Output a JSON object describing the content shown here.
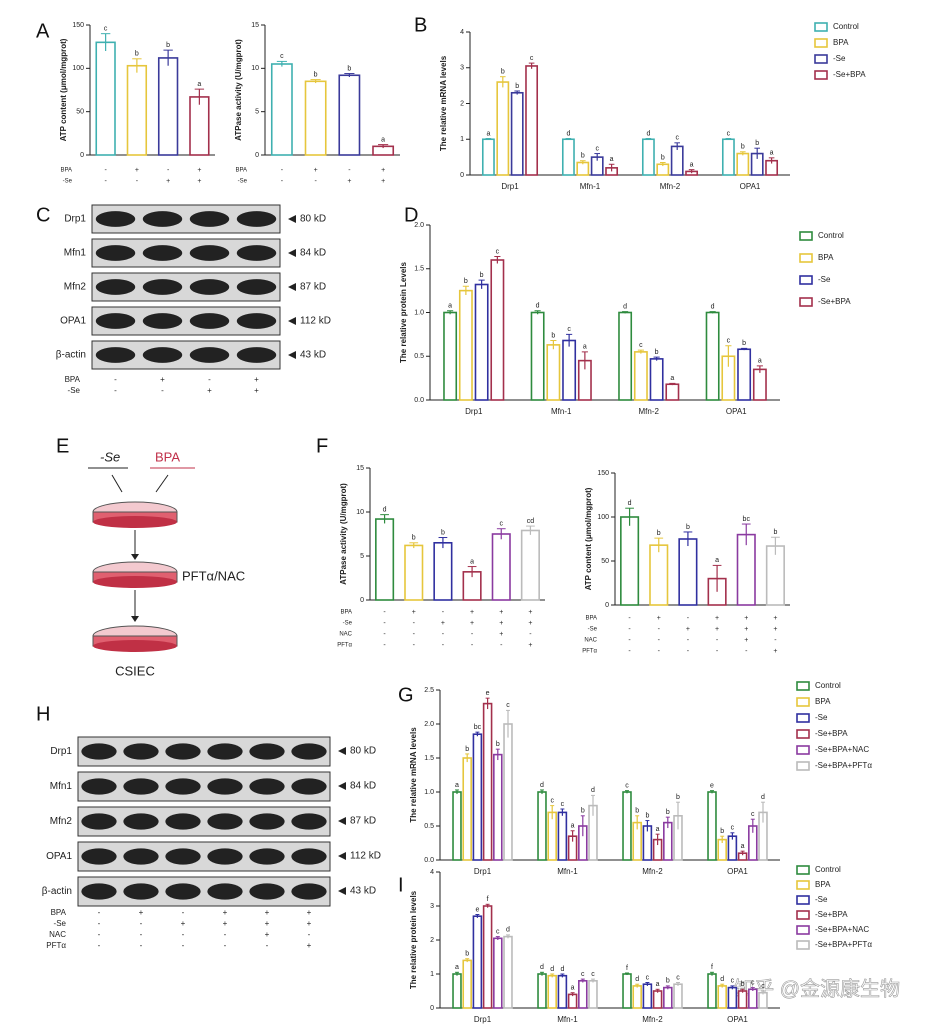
{
  "panel_labels": [
    "A",
    "B",
    "C",
    "D",
    "E",
    "F",
    "H",
    "G",
    "I"
  ],
  "watermark": "知乎 @金源康生物",
  "scheme": {
    "treatments": [
      "-Se",
      "BPA"
    ],
    "step": "PFTα/NAC",
    "cell": "CSIEC"
  },
  "blots": [
    {
      "proteins": [
        "Drp1",
        "Mfn1",
        "Mfn2",
        "OPA1",
        "β-actin"
      ],
      "sizes": [
        "80 kD",
        "84 kD",
        "87 kD",
        "112 kD",
        "43 kD"
      ],
      "conditions": [
        {
          "label": "BPA",
          "signs": [
            "-",
            "+",
            "-",
            "+"
          ]
        },
        {
          "label": "-Se",
          "signs": [
            "-",
            "-",
            "+",
            "+"
          ]
        }
      ]
    },
    {
      "proteins": [
        "Drp1",
        "Mfn1",
        "Mfn2",
        "OPA1",
        "β-actin"
      ],
      "sizes": [
        "80 kD",
        "84 kD",
        "87 kD",
        "112 kD",
        "43 kD"
      ],
      "conditions": [
        {
          "label": "BPA",
          "signs": [
            "-",
            "+",
            "-",
            "+",
            "+",
            "+"
          ]
        },
        {
          "label": "-Se",
          "signs": [
            "-",
            "-",
            "+",
            "+",
            "+",
            "+"
          ]
        },
        {
          "label": "NAC",
          "signs": [
            "-",
            "-",
            "-",
            "-",
            "+",
            "-"
          ]
        },
        {
          "label": "PFTα",
          "signs": [
            "-",
            "-",
            "-",
            "-",
            "-",
            "+"
          ]
        }
      ]
    }
  ],
  "chart_data": [
    {
      "type": "bar",
      "ylabel": "ATP content (μmol/mgprot)",
      "values": [
        130,
        103,
        112,
        67
      ],
      "errors": [
        10,
        8,
        9,
        9
      ],
      "letters": [
        "c",
        "b",
        "b",
        "a"
      ],
      "colors": [
        "#3fb0b0",
        "#e6c63c",
        "#3a3a9a",
        "#a3304c"
      ],
      "ylim": [
        0,
        150
      ],
      "yticks": [
        0,
        50,
        100,
        150
      ],
      "conditions": [
        {
          "label": "BPA",
          "signs": [
            "-",
            "+",
            "-",
            "+"
          ]
        },
        {
          "label": "-Se",
          "signs": [
            "-",
            "-",
            "+",
            "+"
          ]
        }
      ]
    },
    {
      "type": "bar",
      "ylabel": "ATPase activity (U/mgprot)",
      "values": [
        10.5,
        8.5,
        9.2,
        1.0
      ],
      "errors": [
        0.3,
        0.2,
        0.2,
        0.2
      ],
      "letters": [
        "c",
        "b",
        "b",
        "a"
      ],
      "colors": [
        "#3fb0b0",
        "#e6c63c",
        "#3a3a9a",
        "#a3304c"
      ],
      "ylim": [
        0,
        15
      ],
      "yticks": [
        0,
        5,
        10,
        15
      ],
      "conditions": [
        {
          "label": "BPA",
          "signs": [
            "-",
            "+",
            "-",
            "+"
          ]
        },
        {
          "label": "-Se",
          "signs": [
            "-",
            "-",
            "+",
            "+"
          ]
        }
      ]
    },
    {
      "type": "grouped-bar",
      "ylabel": "The relative mRNA levels",
      "categories": [
        "Drp1",
        "Mfn-1",
        "Mfn-2",
        "OPA1"
      ],
      "ylim": [
        0,
        4
      ],
      "yticks": [
        0,
        1,
        2,
        3,
        4
      ],
      "series": [
        {
          "name": "Control",
          "color": "#3fb0b0",
          "values": [
            1,
            1,
            1,
            1
          ],
          "errors": [
            0.02,
            0.02,
            0.02,
            0.02
          ],
          "letters": [
            "a",
            "d",
            "d",
            "c"
          ]
        },
        {
          "name": "BPA",
          "color": "#e6c63c",
          "values": [
            2.6,
            0.35,
            0.3,
            0.6
          ],
          "errors": [
            0.15,
            0.05,
            0.05,
            0.05
          ],
          "letters": [
            "b",
            "b",
            "b",
            "b"
          ]
        },
        {
          "name": "-Se",
          "color": "#3a3a9a",
          "values": [
            2.3,
            0.5,
            0.8,
            0.6
          ],
          "errors": [
            0.05,
            0.1,
            0.1,
            0.15
          ],
          "letters": [
            "b",
            "c",
            "c",
            "b"
          ]
        },
        {
          "name": "-Se+BPA",
          "color": "#a3304c",
          "values": [
            3.05,
            0.2,
            0.1,
            0.4
          ],
          "errors": [
            0.08,
            0.1,
            0.05,
            0.08
          ],
          "letters": [
            "c",
            "a",
            "a",
            "a"
          ]
        }
      ]
    },
    {
      "type": "grouped-bar",
      "ylabel": "The relative protein Levels",
      "categories": [
        "Drp1",
        "Mfn-1",
        "Mfn-2",
        "OPA1"
      ],
      "ylim": [
        0,
        2
      ],
      "yticks": [
        {
          "value": 0,
          "label": "0.0"
        },
        {
          "value": 0.5,
          "label": "0.5"
        },
        {
          "value": 1,
          "label": "1.0"
        },
        {
          "value": 1.5,
          "label": "1.5"
        },
        {
          "value": 2,
          "label": "2.0"
        }
      ],
      "series": [
        {
          "name": "Control",
          "color": "#2e8b3e",
          "values": [
            1,
            1,
            1,
            1
          ],
          "errors": [
            0.02,
            0.02,
            0.01,
            0.01
          ],
          "letters": [
            "a",
            "d",
            "d",
            "d"
          ]
        },
        {
          "name": "BPA",
          "color": "#e6c63c",
          "values": [
            1.25,
            0.63,
            0.55,
            0.5
          ],
          "errors": [
            0.05,
            0.05,
            0.02,
            0.12
          ],
          "letters": [
            "b",
            "b",
            "c",
            "c"
          ]
        },
        {
          "name": "-Se",
          "color": "#3030a0",
          "values": [
            1.32,
            0.68,
            0.47,
            0.58
          ],
          "errors": [
            0.05,
            0.07,
            0.02,
            0.01
          ],
          "letters": [
            "b",
            "c",
            "b",
            "b"
          ]
        },
        {
          "name": "-Se+BPA",
          "color": "#a3304c",
          "values": [
            1.6,
            0.45,
            0.18,
            0.35
          ],
          "errors": [
            0.04,
            0.1,
            0.01,
            0.04
          ],
          "letters": [
            "c",
            "a",
            "a",
            "a"
          ]
        }
      ]
    },
    {
      "type": "bar",
      "ylabel": "ATPase activity (U/mgprot)",
      "values": [
        9.2,
        6.2,
        6.5,
        3.2,
        7.5,
        7.9
      ],
      "errors": [
        0.5,
        0.3,
        0.6,
        0.6,
        0.6,
        0.5
      ],
      "letters": [
        "d",
        "b",
        "b",
        "a",
        "c",
        "cd"
      ],
      "colors": [
        "#2e8b3e",
        "#e6c63c",
        "#3030a0",
        "#a3304c",
        "#8a3aa0",
        "#bbbbbb"
      ],
      "ylim": [
        0,
        15
      ],
      "yticks": [
        0,
        5,
        10,
        15
      ],
      "conditions": [
        {
          "label": "BPA",
          "signs": [
            "-",
            "+",
            "-",
            "+",
            "+",
            "+"
          ]
        },
        {
          "label": "-Se",
          "signs": [
            "-",
            "-",
            "+",
            "+",
            "+",
            "+"
          ]
        },
        {
          "label": "NAC",
          "signs": [
            "-",
            "-",
            "-",
            "-",
            "+",
            "-"
          ]
        },
        {
          "label": "PFTα",
          "signs": [
            "-",
            "-",
            "-",
            "-",
            "-",
            "+"
          ]
        }
      ]
    },
    {
      "type": "bar",
      "ylabel": "ATP content (μmol/mgprot)",
      "values": [
        100,
        68,
        75,
        30,
        80,
        67
      ],
      "errors": [
        10,
        8,
        8,
        15,
        12,
        10
      ],
      "letters": [
        "d",
        "b",
        "b",
        "a",
        "bc",
        "b"
      ],
      "colors": [
        "#2e8b3e",
        "#e6c63c",
        "#3030a0",
        "#a3304c",
        "#8a3aa0",
        "#bbbbbb"
      ],
      "ylim": [
        0,
        150
      ],
      "yticks": [
        0,
        50,
        100,
        150
      ],
      "conditions": [
        {
          "label": "BPA",
          "signs": [
            "-",
            "+",
            "-",
            "+",
            "+",
            "+"
          ]
        },
        {
          "label": "-Se",
          "signs": [
            "-",
            "-",
            "+",
            "+",
            "+",
            "+"
          ]
        },
        {
          "label": "NAC",
          "signs": [
            "-",
            "-",
            "-",
            "-",
            "+",
            "-"
          ]
        },
        {
          "label": "PFTα",
          "signs": [
            "-",
            "-",
            "-",
            "-",
            "-",
            "+"
          ]
        }
      ]
    },
    {
      "type": "grouped-bar",
      "ylabel": "The relative mRNA levels",
      "categories": [
        "Drp1",
        "Mfn-1",
        "Mfn-2",
        "OPA1"
      ],
      "ylim": [
        0,
        2.5
      ],
      "yticks": [
        {
          "value": 0,
          "label": "0.0"
        },
        {
          "value": 0.5,
          "label": "0.5"
        },
        {
          "value": 1,
          "label": "1.0"
        },
        {
          "value": 1.5,
          "label": "1.5"
        },
        {
          "value": 2,
          "label": "2.0"
        },
        {
          "value": 2.5,
          "label": "2.5"
        }
      ],
      "series": [
        {
          "name": "Control",
          "color": "#2e8b3e",
          "values": [
            1,
            1,
            1,
            1
          ],
          "errors": [
            0.03,
            0.03,
            0.02,
            0.02
          ],
          "letters": [
            "a",
            "d",
            "c",
            "e"
          ]
        },
        {
          "name": "BPA",
          "color": "#e6c63c",
          "values": [
            1.5,
            0.7,
            0.55,
            0.3
          ],
          "errors": [
            0.06,
            0.1,
            0.1,
            0.05
          ],
          "letters": [
            "b",
            "c",
            "b",
            "b"
          ]
        },
        {
          "name": "-Se",
          "color": "#3030a0",
          "values": [
            1.85,
            0.7,
            0.5,
            0.35
          ],
          "errors": [
            0.03,
            0.05,
            0.08,
            0.05
          ],
          "letters": [
            "bc",
            "c",
            "b",
            "c"
          ]
        },
        {
          "name": "-Se+BPA",
          "color": "#a3304c",
          "values": [
            2.3,
            0.35,
            0.3,
            0.1
          ],
          "errors": [
            0.08,
            0.08,
            0.08,
            0.03
          ],
          "letters": [
            "e",
            "a",
            "a",
            "a"
          ]
        },
        {
          "name": "-Se+BPA+NAC",
          "color": "#8a3aa0",
          "values": [
            1.55,
            0.5,
            0.55,
            0.5
          ],
          "errors": [
            0.08,
            0.15,
            0.08,
            0.1
          ],
          "letters": [
            "b",
            "b",
            "b",
            "c"
          ]
        },
        {
          "name": "-Se+BPA+PFTα",
          "color": "#bbbbbb",
          "values": [
            2.0,
            0.8,
            0.65,
            0.7
          ],
          "errors": [
            0.2,
            0.15,
            0.2,
            0.15
          ],
          "letters": [
            "c",
            "d",
            "b",
            "d"
          ]
        }
      ]
    },
    {
      "type": "grouped-bar",
      "ylabel": "The relative protein levels",
      "categories": [
        "Drp1",
        "Mfn-1",
        "Mfn-2",
        "OPA1"
      ],
      "ylim": [
        0,
        4
      ],
      "yticks": [
        0,
        1,
        2,
        3,
        4
      ],
      "series": [
        {
          "name": "Control",
          "color": "#2e8b3e",
          "values": [
            1,
            1,
            1,
            1
          ],
          "errors": [
            0.05,
            0.05,
            0.03,
            0.05
          ],
          "letters": [
            "a",
            "d",
            "f",
            "f"
          ]
        },
        {
          "name": "BPA",
          "color": "#e6c63c",
          "values": [
            1.4,
            0.95,
            0.65,
            0.65
          ],
          "errors": [
            0.05,
            0.05,
            0.05,
            0.05
          ],
          "letters": [
            "b",
            "d",
            "d",
            "d"
          ]
        },
        {
          "name": "-Se",
          "color": "#3030a0",
          "values": [
            2.7,
            0.95,
            0.7,
            0.6
          ],
          "errors": [
            0.05,
            0.05,
            0.05,
            0.05
          ],
          "letters": [
            "e",
            "d",
            "c",
            "c"
          ]
        },
        {
          "name": "-Se+BPA",
          "color": "#a3304c",
          "values": [
            3.0,
            0.4,
            0.5,
            0.5
          ],
          "errors": [
            0.05,
            0.05,
            0.05,
            0.05
          ],
          "letters": [
            "f",
            "a",
            "a",
            "b"
          ]
        },
        {
          "name": "-Se+BPA+NAC",
          "color": "#8a3aa0",
          "values": [
            2.05,
            0.8,
            0.6,
            0.55
          ],
          "errors": [
            0.05,
            0.05,
            0.05,
            0.05
          ],
          "letters": [
            "c",
            "c",
            "b",
            "c"
          ]
        },
        {
          "name": "-Se+BPA+PFTα",
          "color": "#bbbbbb",
          "values": [
            2.1,
            0.8,
            0.7,
            0.45
          ],
          "errors": [
            0.05,
            0.05,
            0.05,
            0.05
          ],
          "letters": [
            "d",
            "c",
            "c",
            "c"
          ]
        }
      ]
    }
  ]
}
